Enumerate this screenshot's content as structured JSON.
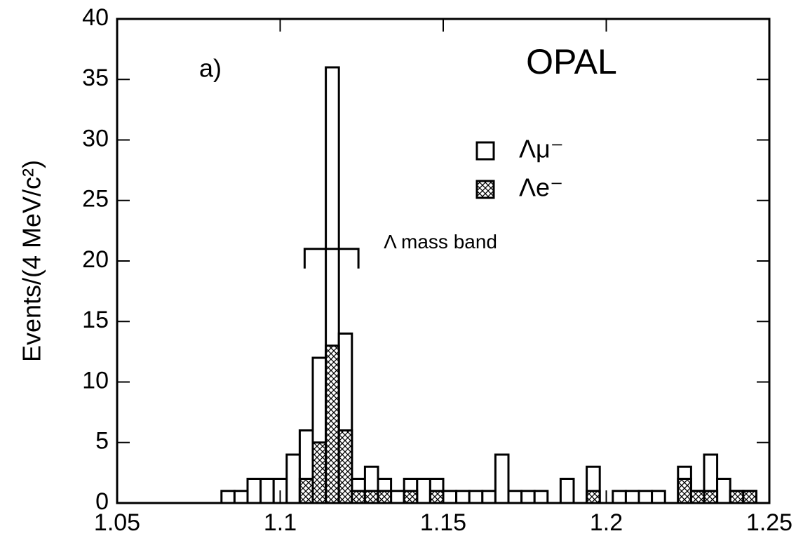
{
  "chart_data": {
    "type": "histogram",
    "panel_label": "a)",
    "experiment": "OPAL",
    "ylabel": "Events/(4 MeV/c²)",
    "bins": [
      1.05,
      1.054,
      1.058,
      1.062,
      1.066,
      1.07,
      1.074,
      1.078,
      1.082,
      1.086,
      1.09,
      1.094,
      1.098,
      1.102,
      1.106,
      1.11,
      1.114,
      1.118,
      1.122,
      1.126,
      1.13,
      1.134,
      1.138,
      1.142,
      1.146,
      1.15,
      1.154,
      1.158,
      1.162,
      1.166,
      1.17,
      1.174,
      1.178,
      1.182,
      1.186,
      1.19,
      1.194,
      1.198,
      1.202,
      1.206,
      1.21,
      1.214,
      1.218,
      1.222,
      1.226,
      1.23,
      1.234,
      1.238,
      1.242,
      1.246,
      1.25
    ],
    "series": [
      {
        "name": "Λμ⁻",
        "color": "#000000",
        "hatch": false,
        "values": [
          0,
          0,
          0,
          0,
          0,
          0,
          0,
          0,
          1,
          1,
          2,
          2,
          2,
          4,
          6,
          12,
          36,
          14,
          2,
          3,
          2,
          1,
          2,
          2,
          2,
          1,
          1,
          1,
          1,
          4,
          1,
          1,
          1,
          0,
          2,
          0,
          3,
          0,
          1,
          1,
          1,
          1,
          0,
          3,
          1,
          4,
          2,
          1,
          1,
          0
        ]
      },
      {
        "name": "Λe⁻",
        "color": "#000000",
        "hatch": true,
        "values": [
          0,
          0,
          0,
          0,
          0,
          0,
          0,
          0,
          0,
          0,
          0,
          0,
          0,
          0,
          2,
          5,
          13,
          6,
          1,
          1,
          1,
          0,
          1,
          0,
          1,
          0,
          0,
          0,
          0,
          0,
          0,
          0,
          0,
          0,
          0,
          0,
          1,
          0,
          0,
          0,
          0,
          0,
          0,
          2,
          1,
          1,
          0,
          1,
          1,
          0
        ]
      }
    ],
    "mass_band": {
      "label": "Λ mass band",
      "x": [
        1.1075,
        1.124
      ],
      "y": 21
    },
    "xlim": [
      1.05,
      1.25
    ],
    "xticks": [
      1.05,
      1.1,
      1.15,
      1.2,
      1.25
    ],
    "ylim": [
      0,
      40
    ],
    "yticks": [
      0,
      5,
      10,
      15,
      20,
      25,
      30,
      35,
      40
    ]
  }
}
